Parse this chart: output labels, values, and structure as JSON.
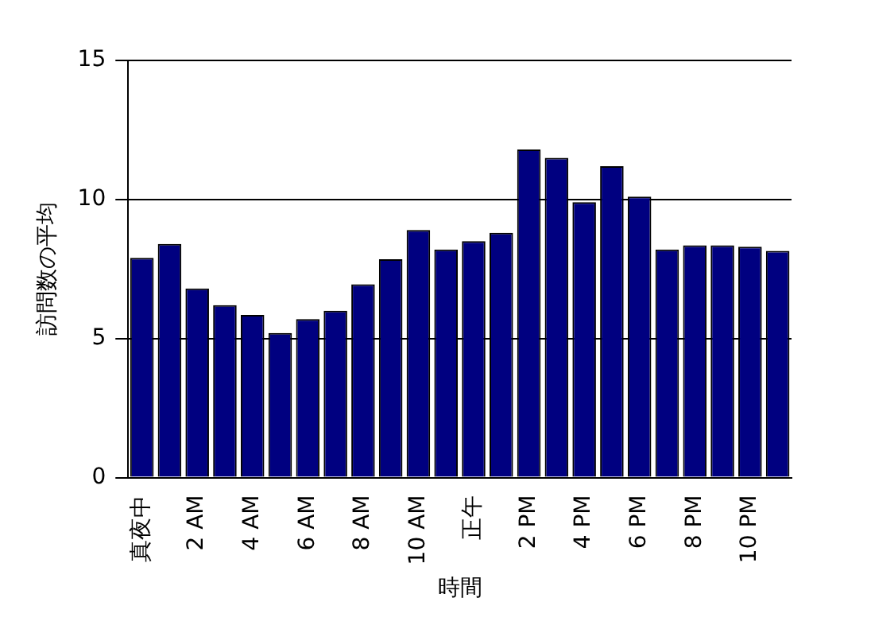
{
  "chart_data": {
    "type": "bar",
    "xlabel": "時間",
    "ylabel": "訪問数の平均",
    "categories": [
      "真夜中",
      null,
      "2 AM",
      null,
      "4 AM",
      null,
      "6 AM",
      null,
      "8 AM",
      null,
      "10 AM",
      null,
      "正午",
      null,
      "2 PM",
      null,
      "4 PM",
      null,
      "6 PM",
      null,
      "8 PM",
      null,
      "10 PM",
      null
    ],
    "values": [
      7.9,
      8.4,
      6.8,
      6.2,
      5.85,
      5.2,
      5.7,
      6.0,
      6.95,
      7.85,
      8.9,
      8.2,
      8.5,
      8.8,
      11.8,
      11.5,
      9.9,
      11.2,
      10.1,
      8.2,
      8.35,
      8.35,
      8.3,
      8.15
    ],
    "color": "#000080",
    "ylim": [
      0,
      15
    ],
    "yticks": [
      0,
      5,
      10,
      15
    ],
    "grid": "y"
  }
}
